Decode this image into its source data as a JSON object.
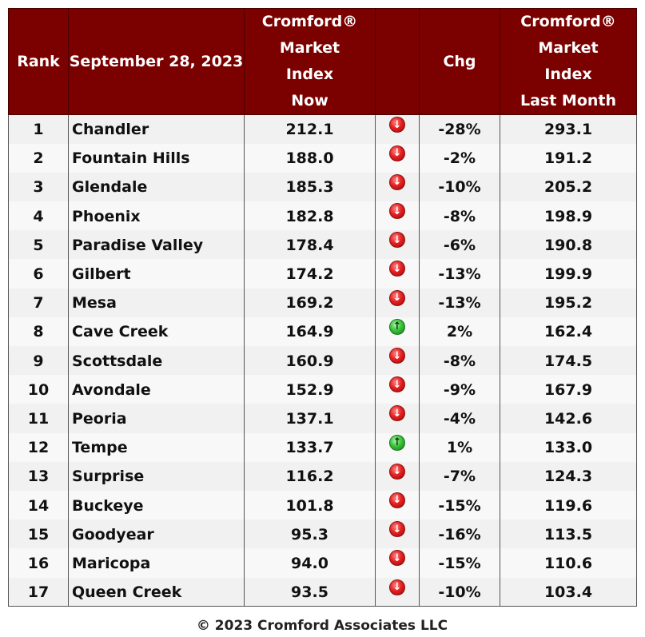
{
  "table": {
    "headers": {
      "rank": "Rank",
      "date": "September 28, 2023",
      "now": [
        "Cromford®",
        "Market",
        "Index",
        "Now"
      ],
      "arrow": "",
      "chg": "Chg",
      "last": [
        "Cromford®",
        "Market",
        "Index",
        "Last Month"
      ]
    },
    "rows": [
      {
        "rank": "1",
        "city": "Chandler",
        "now": "212.1",
        "direction": "down",
        "chg": "-28%",
        "last": "293.1"
      },
      {
        "rank": "2",
        "city": "Fountain Hills",
        "now": "188.0",
        "direction": "down",
        "chg": "-2%",
        "last": "191.2"
      },
      {
        "rank": "3",
        "city": "Glendale",
        "now": "185.3",
        "direction": "down",
        "chg": "-10%",
        "last": "205.2"
      },
      {
        "rank": "4",
        "city": "Phoenix",
        "now": "182.8",
        "direction": "down",
        "chg": "-8%",
        "last": "198.9"
      },
      {
        "rank": "5",
        "city": "Paradise Valley",
        "now": "178.4",
        "direction": "down",
        "chg": "-6%",
        "last": "190.8"
      },
      {
        "rank": "6",
        "city": "Gilbert",
        "now": "174.2",
        "direction": "down",
        "chg": "-13%",
        "last": "199.9"
      },
      {
        "rank": "7",
        "city": "Mesa",
        "now": "169.2",
        "direction": "down",
        "chg": "-13%",
        "last": "195.2"
      },
      {
        "rank": "8",
        "city": "Cave Creek",
        "now": "164.9",
        "direction": "up",
        "chg": "2%",
        "last": "162.4"
      },
      {
        "rank": "9",
        "city": "Scottsdale",
        "now": "160.9",
        "direction": "down",
        "chg": "-8%",
        "last": "174.5"
      },
      {
        "rank": "10",
        "city": "Avondale",
        "now": "152.9",
        "direction": "down",
        "chg": "-9%",
        "last": "167.9"
      },
      {
        "rank": "11",
        "city": "Peoria",
        "now": "137.1",
        "direction": "down",
        "chg": "-4%",
        "last": "142.6"
      },
      {
        "rank": "12",
        "city": "Tempe",
        "now": "133.7",
        "direction": "up",
        "chg": "1%",
        "last": "133.0"
      },
      {
        "rank": "13",
        "city": "Surprise",
        "now": "116.2",
        "direction": "down",
        "chg": "-7%",
        "last": "124.3"
      },
      {
        "rank": "14",
        "city": "Buckeye",
        "now": "101.8",
        "direction": "down",
        "chg": "-15%",
        "last": "119.6"
      },
      {
        "rank": "15",
        "city": "Goodyear",
        "now": "95.3",
        "direction": "down",
        "chg": "-16%",
        "last": "113.5"
      },
      {
        "rank": "16",
        "city": "Maricopa",
        "now": "94.0",
        "direction": "down",
        "chg": "-15%",
        "last": "110.6"
      },
      {
        "rank": "17",
        "city": "Queen Creek",
        "now": "93.5",
        "direction": "down",
        "chg": "-10%",
        "last": "103.4"
      }
    ]
  },
  "footer": "© 2023 Cromford Associates LLC",
  "colors": {
    "header_bg": "#7b0000",
    "header_text": "#ffffff",
    "arrow_down": "#e32222",
    "arrow_up": "#37c437"
  },
  "icons": {
    "down": "arrow-down-icon",
    "up": "arrow-up-icon"
  }
}
